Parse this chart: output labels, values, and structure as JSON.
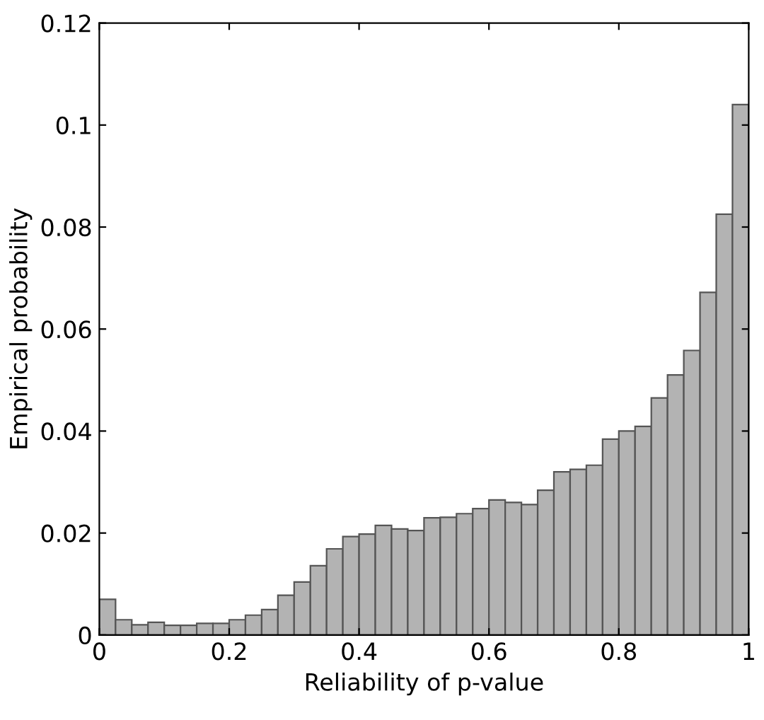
{
  "chart_data": {
    "type": "histogram",
    "xlabel": "Reliability of p-value",
    "ylabel": "Empirical probability",
    "bins": [
      0,
      0.025,
      0.05,
      0.075,
      0.1,
      0.125,
      0.15,
      0.175,
      0.2,
      0.225,
      0.25,
      0.275,
      0.3,
      0.325,
      0.35,
      0.375,
      0.4,
      0.425,
      0.45,
      0.475,
      0.5,
      0.525,
      0.55,
      0.575,
      0.6,
      0.625,
      0.65,
      0.675,
      0.7,
      0.725,
      0.75,
      0.775,
      0.8,
      0.825,
      0.85,
      0.875,
      0.9,
      0.925,
      0.95,
      0.975,
      1
    ],
    "values": [
      0.007,
      0.003,
      0.002,
      0.0025,
      0.0019,
      0.0019,
      0.0023,
      0.0023,
      0.003,
      0.0039,
      0.005,
      0.0078,
      0.0104,
      0.0136,
      0.0169,
      0.0193,
      0.0198,
      0.0215,
      0.0208,
      0.0205,
      0.023,
      0.0231,
      0.0238,
      0.0248,
      0.0265,
      0.026,
      0.0256,
      0.0284,
      0.032,
      0.0325,
      0.0333,
      0.0384,
      0.04,
      0.0409,
      0.0465,
      0.051,
      0.0558,
      0.0672,
      0.0825,
      0.104
    ],
    "color": "#b3b3b3",
    "xlim": [
      0,
      1
    ],
    "ylim": [
      0,
      0.12
    ],
    "xticks": [
      0,
      0.2,
      0.4,
      0.6,
      0.8,
      1
    ],
    "yticks": [
      0,
      0.02,
      0.04,
      0.06,
      0.08,
      0.1,
      0.12
    ],
    "grid": false
  }
}
